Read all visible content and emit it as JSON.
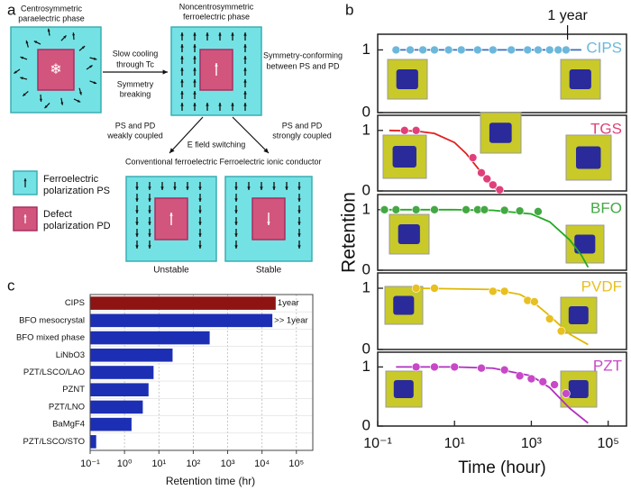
{
  "panel_labels": [
    "a",
    "b",
    "c"
  ],
  "diagram": {
    "texts": [
      "Centrosymmetric",
      "paraelectric phase",
      "Noncentrosymmetric",
      "ferroelectric phase",
      "Slow cooling",
      "through Tc",
      "Symmetry",
      "breaking",
      "Symmetry-conforming",
      "between PS and PD",
      "PS and PD",
      "weakly coupled",
      "E field switching",
      "PS and PD",
      "strongly coupled",
      "Conventional ferroelectric",
      "Ferroelectric ionic conductor",
      "Ferroelectric",
      "polarization PS",
      "Defect",
      "polarization PD",
      "Unstable",
      "Stable"
    ]
  },
  "chart_data": [
    {
      "type": "scatter",
      "title": "CIPS",
      "color": "#6cb8dc",
      "x": [
        0.3,
        0.7,
        1.5,
        3,
        7,
        15,
        40,
        100,
        300,
        800,
        1500,
        3000,
        5000,
        8000
      ],
      "values": [
        1,
        1,
        1,
        1,
        1,
        1,
        1,
        1,
        1,
        1,
        1,
        1,
        1,
        1
      ],
      "fit": {
        "color": "#3a6fc0",
        "x": [
          0.3,
          20000
        ],
        "values": [
          1,
          1
        ]
      },
      "annotation": {
        "text": "1 year",
        "x": 8760
      },
      "xlim": [
        0.1,
        300000
      ],
      "xscale": "log",
      "ylim": [
        0,
        1.25
      ],
      "yticks": [
        0,
        1
      ]
    },
    {
      "type": "scatter",
      "title": "TGS",
      "color": "#e0407a",
      "x": [
        0.5,
        1,
        30,
        50,
        70,
        100,
        150
      ],
      "values": [
        1,
        1,
        0.55,
        0.3,
        0.2,
        0.1,
        0.02
      ],
      "fit": {
        "color": "#e02020",
        "x": [
          0.2,
          1,
          3,
          10,
          20,
          40,
          70,
          100,
          150
        ],
        "values": [
          1,
          0.99,
          0.95,
          0.8,
          0.62,
          0.38,
          0.18,
          0.07,
          0
        ]
      },
      "xlim": [
        0.1,
        300000
      ],
      "xscale": "log",
      "ylim": [
        0,
        1.25
      ],
      "yticks": [
        0,
        1
      ]
    },
    {
      "type": "scatter",
      "title": "BFO",
      "color": "#44a844",
      "x": [
        0.15,
        0.3,
        1,
        3,
        20,
        40,
        60,
        200,
        500,
        1500
      ],
      "values": [
        1,
        1,
        1,
        1,
        1,
        1,
        1,
        0.99,
        0.98,
        0.97
      ],
      "fit": {
        "color": "#22aa22",
        "x": [
          0.2,
          10,
          100,
          1000,
          3000,
          10000,
          20000,
          30000
        ],
        "values": [
          1,
          1,
          0.99,
          0.93,
          0.8,
          0.5,
          0.25,
          0.05
        ]
      },
      "ylabel": "Retention",
      "xlim": [
        0.1,
        300000
      ],
      "xscale": "log",
      "ylim": [
        0,
        1.25
      ],
      "yticks": [
        0,
        1
      ]
    },
    {
      "type": "scatter",
      "title": "PVDF",
      "color": "#e8c020",
      "x": [
        1,
        3,
        100,
        200,
        800,
        1200,
        3000,
        6000
      ],
      "values": [
        1,
        1,
        0.95,
        0.95,
        0.8,
        0.78,
        0.5,
        0.3
      ],
      "fit": {
        "color": "#e0b800",
        "x": [
          1,
          100,
          500,
          1000,
          3000,
          10000,
          30000
        ],
        "values": [
          1,
          0.98,
          0.9,
          0.8,
          0.55,
          0.25,
          0.08
        ]
      },
      "xlim": [
        0.1,
        300000
      ],
      "xscale": "log",
      "ylim": [
        0,
        1.25
      ],
      "yticks": [
        0,
        1
      ]
    },
    {
      "type": "scatter",
      "title": "PZT",
      "color": "#c848c8",
      "x": [
        1,
        3,
        10,
        50,
        200,
        500,
        1000,
        2000,
        4000,
        8000
      ],
      "values": [
        1,
        1,
        1,
        0.98,
        0.95,
        0.85,
        0.8,
        0.75,
        0.7,
        0.55
      ],
      "fit": {
        "color": "#b030c0",
        "x": [
          0.3,
          10,
          100,
          1000,
          3000,
          10000,
          30000
        ],
        "values": [
          1,
          1,
          0.98,
          0.85,
          0.65,
          0.3,
          0.05
        ]
      },
      "xlabel": "Time (hour)",
      "xlim": [
        0.1,
        300000
      ],
      "xscale": "log",
      "ylim": [
        0,
        1.25
      ],
      "yticks": [
        0,
        1
      ],
      "xticks": [
        {
          "value": 0.1,
          "label": "10⁻¹"
        },
        {
          "value": 10,
          "label": "10¹"
        },
        {
          "value": 1000,
          "label": "10³"
        },
        {
          "value": 100000,
          "label": "10⁵"
        }
      ]
    },
    {
      "type": "hbar",
      "categories": [
        "CIPS",
        "BFO mesocrystal",
        "BFO mixed phase",
        "LiNbO3",
        "PZT/LSCO/LAO",
        "PZNT",
        "PZT/LNO",
        "BaMgF4",
        "PZT/LSCO/STO"
      ],
      "values": [
        25000,
        20000,
        300,
        25,
        7,
        5,
        3.4,
        1.6,
        0.15
      ],
      "colors": [
        "#8e1414",
        "#1c2fb4",
        "#1c2fb4",
        "#1c2fb4",
        "#1c2fb4",
        "#1c2fb4",
        "#1c2fb4",
        "#1c2fb4",
        "#1c2fb4"
      ],
      "annotations": [
        "1year",
        ">> 1year"
      ],
      "xlabel": "Retention time (hr)",
      "xscale": "log",
      "grid": true,
      "xlim": [
        0.1,
        300000
      ],
      "xticks": [
        {
          "value": 0.1,
          "label": "10⁻¹"
        },
        {
          "value": 1,
          "label": "10⁰"
        },
        {
          "value": 10,
          "label": "10¹"
        },
        {
          "value": 100,
          "label": "10²"
        },
        {
          "value": 1000,
          "label": "10³"
        },
        {
          "value": 10000,
          "label": "10⁴"
        },
        {
          "value": 100000,
          "label": "10⁵"
        }
      ]
    }
  ]
}
